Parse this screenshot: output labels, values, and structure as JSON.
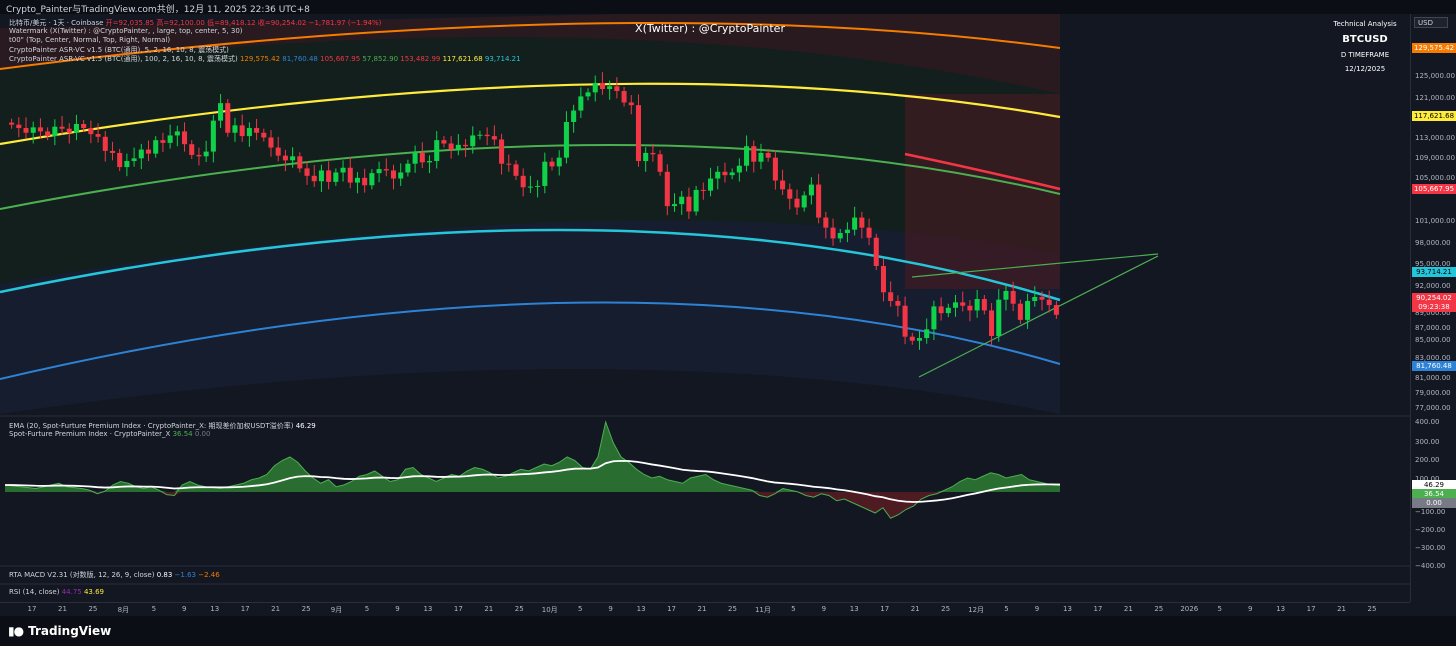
{
  "topbar": {
    "title": "Crypto_Painter与TradingView.com共创，12月 11, 2025 22:36 UTC+8"
  },
  "legend": {
    "symbol_line_1": "比特币/美元 · 1天 · Coinbase",
    "ohlc": {
      "o": "开=92,035.85",
      "h": "高=92,100.00",
      "l": "低=89,418.12",
      "c": "收=90,254.02",
      "chg": "−1,781.97 (−1.94%)"
    },
    "line_2": "Watermark (X(Twitter) : @CryptoPainter, , large, top, center, 5, 30)",
    "line_3": "t00\" (Top, Center, Normal, Top, Right, Normal)",
    "line_4": "CryptoPainter ASR-VC v1.5 (BTC(通用), 5, 2, 16, 10, 8, 震荡模式)",
    "line_5_prefix": "CryptoPainter ASR-VC v1.5 (BTC(通用), 100, 2, 16, 10, 8, 震荡模式)",
    "line_5_values": [
      "129,575.42",
      "81,760.48",
      "105,667.95",
      "57,852.90",
      "153,482.99",
      "117,621.68",
      "93,714.21"
    ],
    "line_5_colors": [
      "#f57c00",
      "#2e82d6",
      "#f23645",
      "#4caf50",
      "#f23645",
      "#ffeb3b",
      "#26c6da"
    ]
  },
  "watermark": "X(Twitter) : @CryptoPainter",
  "ta_box": {
    "title": "Technical Analysis",
    "symbol": "BTCUSD",
    "timeframe": "D TIMEFRAME",
    "date": "12/12/2025"
  },
  "currency_button": "USD",
  "price_axis": {
    "ticks": [
      "125,000.00",
      "121,000.00",
      "117,000.00",
      "113,000.00",
      "109,000.00",
      "105,000.00",
      "101,000.00",
      "98,000.00",
      "95,000.00",
      "92,000.00",
      "89,000.00",
      "87,000.00",
      "85,000.00",
      "83,000.00",
      "81,000.00",
      "79,000.00",
      "77,000.00"
    ],
    "tags": [
      {
        "text": "129,575.42",
        "color": "#f57c00"
      },
      {
        "text": "117,621.68",
        "color": "#ffeb3b"
      },
      {
        "text": "105,667.95",
        "color": "#f23645"
      },
      {
        "text": "93,714.21",
        "color": "#26c6da"
      },
      {
        "text": "90,254.02",
        "color": "#f23645"
      },
      {
        "text": "09:23:38",
        "color": "#f23645"
      },
      {
        "text": "81,760.48",
        "color": "#2e82d6"
      }
    ]
  },
  "indicator_1": {
    "line_1_label": "EMA (20, Spot-Furture Premium Index · CryptoPainter_X: 期现差价加权USDT溢价率)",
    "line_1_value": "46.29",
    "line_2_label": "Spot-Furture Premium Index · CryptoPainter_X",
    "line_2_value": "36.54",
    "line_2_zero": "0.00",
    "ticks": [
      "400.00",
      "300.00",
      "200.00",
      "100.00",
      "−100.00",
      "−200.00",
      "−300.00",
      "−400.00"
    ],
    "tags": [
      {
        "text": "46.29",
        "color": "#ffffff"
      },
      {
        "text": "36.54",
        "color": "#4caf50"
      },
      {
        "text": "0.00",
        "color": "#787b86"
      }
    ]
  },
  "indicator_2": {
    "label": "RTA MACD V2.31 (对数版, 12, 26, 9, close)",
    "v1": "0.83",
    "v2": "−1.63",
    "v3": "−2.46"
  },
  "indicator_3": {
    "label": "RSI (14, close)",
    "v1": "44.75",
    "v2": "43.69"
  },
  "time_axis": [
    "17",
    "21",
    "25",
    "8月",
    "5",
    "9",
    "13",
    "17",
    "21",
    "25",
    "9月",
    "5",
    "9",
    "13",
    "17",
    "21",
    "25",
    "10月",
    "5",
    "9",
    "13",
    "17",
    "21",
    "25",
    "11月",
    "5",
    "9",
    "13",
    "17",
    "21",
    "25",
    "12月",
    "5",
    "9",
    "13",
    "17",
    "21",
    "25",
    "2026",
    "5",
    "9",
    "13",
    "17",
    "21",
    "25"
  ],
  "footer": {
    "brand": "TradingView"
  },
  "colors": {
    "up": "#0fd14a",
    "down": "#f23645",
    "bg": "#131722"
  },
  "chart_data": {
    "type": "candlestick",
    "symbol": "BTCUSD",
    "candles_close": [
      118500,
      118000,
      117300,
      118100,
      117500,
      116800,
      118200,
      117900,
      117300,
      118600,
      118000,
      117100,
      116700,
      114600,
      114300,
      112200,
      113100,
      113500,
      114800,
      114200,
      116200,
      115800,
      116900,
      117500,
      115600,
      114000,
      113800,
      114500,
      119100,
      121700,
      117300,
      118400,
      116800,
      118000,
      117300,
      116600,
      115100,
      113900,
      113200,
      113800,
      112000,
      110900,
      110100,
      111700,
      110000,
      111400,
      112100,
      109900,
      110600,
      109500,
      111300,
      111900,
      111700,
      110500,
      111400,
      112700,
      114300,
      112900,
      113100,
      116200,
      115700,
      114800,
      115500,
      115300,
      116900,
      117000,
      116800,
      116300,
      112700,
      112600,
      110900,
      109200,
      109300,
      109400,
      113000,
      112300,
      113600,
      118900,
      120600,
      122700,
      123300,
      124700,
      123800,
      124200,
      123500,
      121800,
      121400,
      113100,
      114300,
      114100,
      111500,
      106400,
      106700,
      107800,
      105600,
      108800,
      108700,
      110500,
      111500,
      111000,
      111400,
      112400,
      115300,
      113000,
      114300,
      113600,
      110200,
      108900,
      107500,
      106200,
      108000,
      109600,
      104700,
      103200,
      101600,
      102400,
      102900,
      104700,
      103200,
      101700,
      97500,
      93600,
      92300,
      91600,
      87000,
      86400,
      86800,
      88100,
      91500,
      90500,
      91300,
      92100,
      91600,
      90900,
      92600,
      90900,
      87100,
      92500,
      93800,
      91900,
      89500,
      92300,
      92900,
      92500,
      91700,
      90254
    ]
  },
  "indicator_premium": {
    "type": "area",
    "values": [
      40,
      35,
      30,
      25,
      20,
      30,
      40,
      50,
      30,
      25,
      20,
      10,
      -10,
      5,
      40,
      60,
      50,
      30,
      20,
      30,
      10,
      -15,
      -20,
      40,
      60,
      40,
      30,
      25,
      20,
      30,
      40,
      50,
      70,
      80,
      100,
      150,
      180,
      200,
      170,
      120,
      80,
      50,
      70,
      30,
      40,
      60,
      90,
      100,
      120,
      90,
      60,
      70,
      130,
      140,
      100,
      80,
      60,
      80,
      100,
      90,
      120,
      140,
      130,
      110,
      80,
      90,
      110,
      130,
      120,
      140,
      160,
      150,
      170,
      200,
      180,
      140,
      130,
      200,
      400,
      280,
      200,
      170,
      130,
      100,
      80,
      90,
      70,
      60,
      50,
      80,
      90,
      100,
      70,
      50,
      40,
      30,
      20,
      10,
      -20,
      -30,
      -10,
      20,
      10,
      0,
      -20,
      -30,
      -10,
      -20,
      -50,
      -40,
      -60,
      -80,
      -100,
      -120,
      -90,
      -150,
      -130,
      -100,
      -80,
      -40,
      -20,
      -10,
      10,
      30,
      60,
      80,
      70,
      90,
      110,
      100,
      80,
      90,
      100,
      70,
      60,
      50,
      40,
      36.54
    ],
    "ema_20_last": 46.29,
    "ylim": [
      -400,
      400
    ]
  }
}
